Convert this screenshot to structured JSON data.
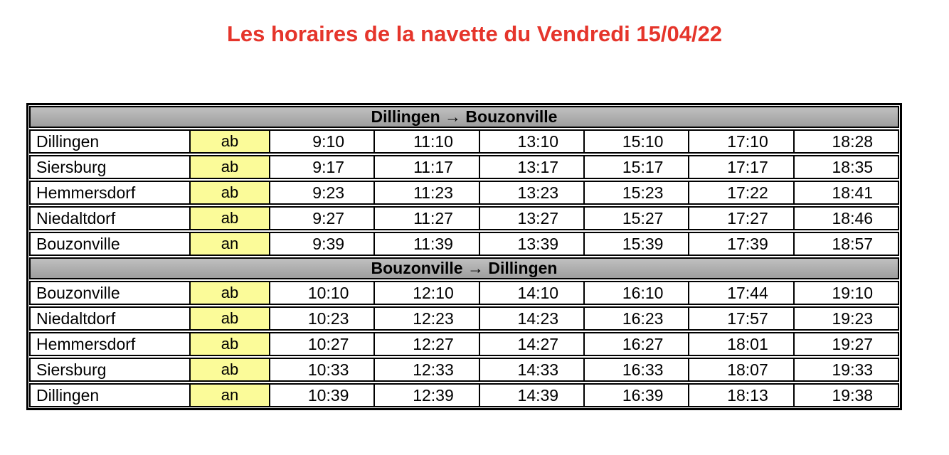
{
  "title": "Les horaires de la navette du Vendredi 15/04/22",
  "colors": {
    "title_red": "#e5352b",
    "header_gray_top": "#c0c0c0",
    "header_gray_bottom": "#9e9e9e",
    "highlight_yellow": "#fbfb99",
    "border_black": "#000000"
  },
  "timetable": {
    "sections": [
      {
        "header": "Dillingen → Bouzonville",
        "rows": [
          {
            "station": "Dillingen",
            "type": "ab",
            "times": [
              "9:10",
              "11:10",
              "13:10",
              "15:10",
              "17:10",
              "18:28"
            ]
          },
          {
            "station": "Siersburg",
            "type": "ab",
            "times": [
              "9:17",
              "11:17",
              "13:17",
              "15:17",
              "17:17",
              "18:35"
            ]
          },
          {
            "station": "Hemmersdorf",
            "type": "ab",
            "times": [
              "9:23",
              "11:23",
              "13:23",
              "15:23",
              "17:22",
              "18:41"
            ]
          },
          {
            "station": "Niedaltdorf",
            "type": "ab",
            "times": [
              "9:27",
              "11:27",
              "13:27",
              "15:27",
              "17:27",
              "18:46"
            ]
          },
          {
            "station": "Bouzonville",
            "type": "an",
            "times": [
              "9:39",
              "11:39",
              "13:39",
              "15:39",
              "17:39",
              "18:57"
            ]
          }
        ]
      },
      {
        "header": "Bouzonville → Dillingen",
        "rows": [
          {
            "station": "Bouzonville",
            "type": "ab",
            "times": [
              "10:10",
              "12:10",
              "14:10",
              "16:10",
              "17:44",
              "19:10"
            ]
          },
          {
            "station": "Niedaltdorf",
            "type": "ab",
            "times": [
              "10:23",
              "12:23",
              "14:23",
              "16:23",
              "17:57",
              "19:23"
            ]
          },
          {
            "station": "Hemmersdorf",
            "type": "ab",
            "times": [
              "10:27",
              "12:27",
              "14:27",
              "16:27",
              "18:01",
              "19:27"
            ]
          },
          {
            "station": "Siersburg",
            "type": "ab",
            "times": [
              "10:33",
              "12:33",
              "14:33",
              "16:33",
              "18:07",
              "19:33"
            ]
          },
          {
            "station": "Dillingen",
            "type": "an",
            "times": [
              "10:39",
              "12:39",
              "14:39",
              "16:39",
              "18:13",
              "19:38"
            ]
          }
        ]
      }
    ]
  }
}
